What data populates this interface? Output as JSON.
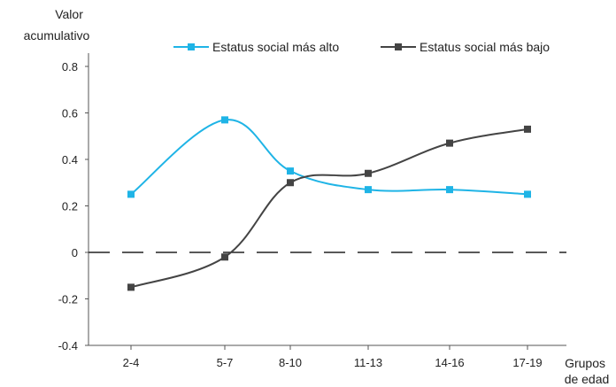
{
  "chart_data": {
    "type": "line",
    "title": "",
    "ylabel_lines": [
      "Valor",
      "acumulativo"
    ],
    "xlabel_lines": [
      "Grupos",
      "de edad"
    ],
    "categories": [
      "2-4",
      "5-7",
      "8-10",
      "11-13",
      "14-16",
      "17-19"
    ],
    "y_ticks": [
      "0.8",
      "0.6",
      "0.4",
      "0.2",
      "0",
      "-0.2",
      "-0.4"
    ],
    "y_tick_values": [
      0.8,
      0.6,
      0.4,
      0.2,
      0,
      -0.2,
      -0.4
    ],
    "ylim": [
      -0.4,
      0.85
    ],
    "zero_line": "dashed",
    "grid": false,
    "legend_position": "top",
    "series": [
      {
        "name": "Estatus social más alto",
        "color": "#1fb4e6",
        "marker": "square",
        "values": [
          0.25,
          0.57,
          0.35,
          0.27,
          0.27,
          0.25
        ]
      },
      {
        "name": "Estatus social más bajo",
        "color": "#444444",
        "marker": "square",
        "values": [
          -0.15,
          -0.02,
          0.3,
          0.34,
          0.47,
          0.53
        ]
      }
    ]
  }
}
